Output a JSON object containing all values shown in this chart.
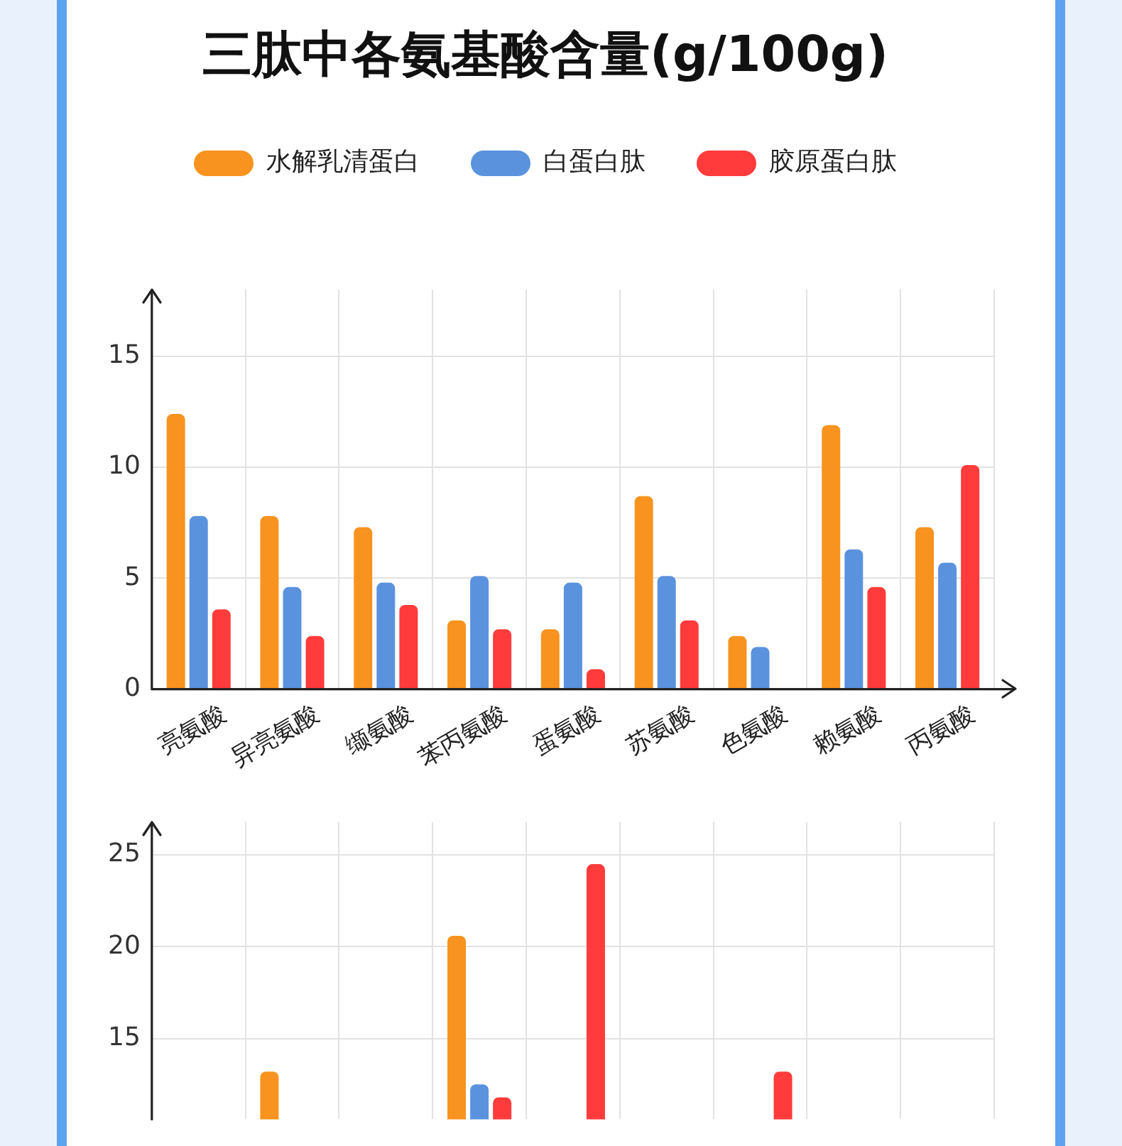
{
  "chart_data": [
    {
      "type": "bar",
      "title": "三肽中各氨基酸含量(g/100g)",
      "categories": [
        "亮氨酸",
        "异亮氨酸",
        "缬氨酸",
        "苯丙氨酸",
        "蛋氨酸",
        "苏氨酸",
        "色氨酸",
        "赖氨酸",
        "丙氨酸"
      ],
      "series": [
        {
          "name": "水解乳清蛋白",
          "color": "#f7931e",
          "values": [
            12.4,
            7.8,
            7.3,
            3.1,
            2.7,
            8.7,
            2.4,
            11.9,
            7.3
          ]
        },
        {
          "name": "白蛋白肽",
          "color": "#5a92de",
          "values": [
            7.8,
            4.6,
            4.8,
            5.1,
            4.8,
            5.1,
            1.9,
            6.3,
            5.7
          ]
        },
        {
          "name": "胶原蛋白肽",
          "color": "#ff3b3b",
          "values": [
            3.6,
            2.4,
            3.8,
            2.7,
            0.9,
            3.1,
            null,
            4.6,
            10.1
          ]
        }
      ],
      "ylim": [
        0,
        18
      ],
      "yticks": [
        0,
        5,
        10,
        15
      ],
      "grid": true,
      "legend": "top"
    },
    {
      "type": "bar",
      "categories": [
        null,
        null,
        null,
        null,
        null,
        null,
        null,
        null,
        null
      ],
      "series": [
        {
          "color": "#f7931e",
          "values": [
            null,
            13.2,
            null,
            20.6,
            null,
            null,
            null,
            null,
            null
          ]
        },
        {
          "color": "#5a92de",
          "values": [
            null,
            null,
            null,
            12.5,
            null,
            null,
            null,
            null,
            null
          ]
        },
        {
          "color": "#ff3b3b",
          "values": [
            null,
            null,
            null,
            11.8,
            24.5,
            null,
            13.2,
            null,
            null
          ]
        }
      ],
      "ylim": [
        10.6,
        26.8
      ],
      "yticks": [
        15,
        20,
        25
      ],
      "grid": true,
      "tick_labels": "y"
    }
  ]
}
